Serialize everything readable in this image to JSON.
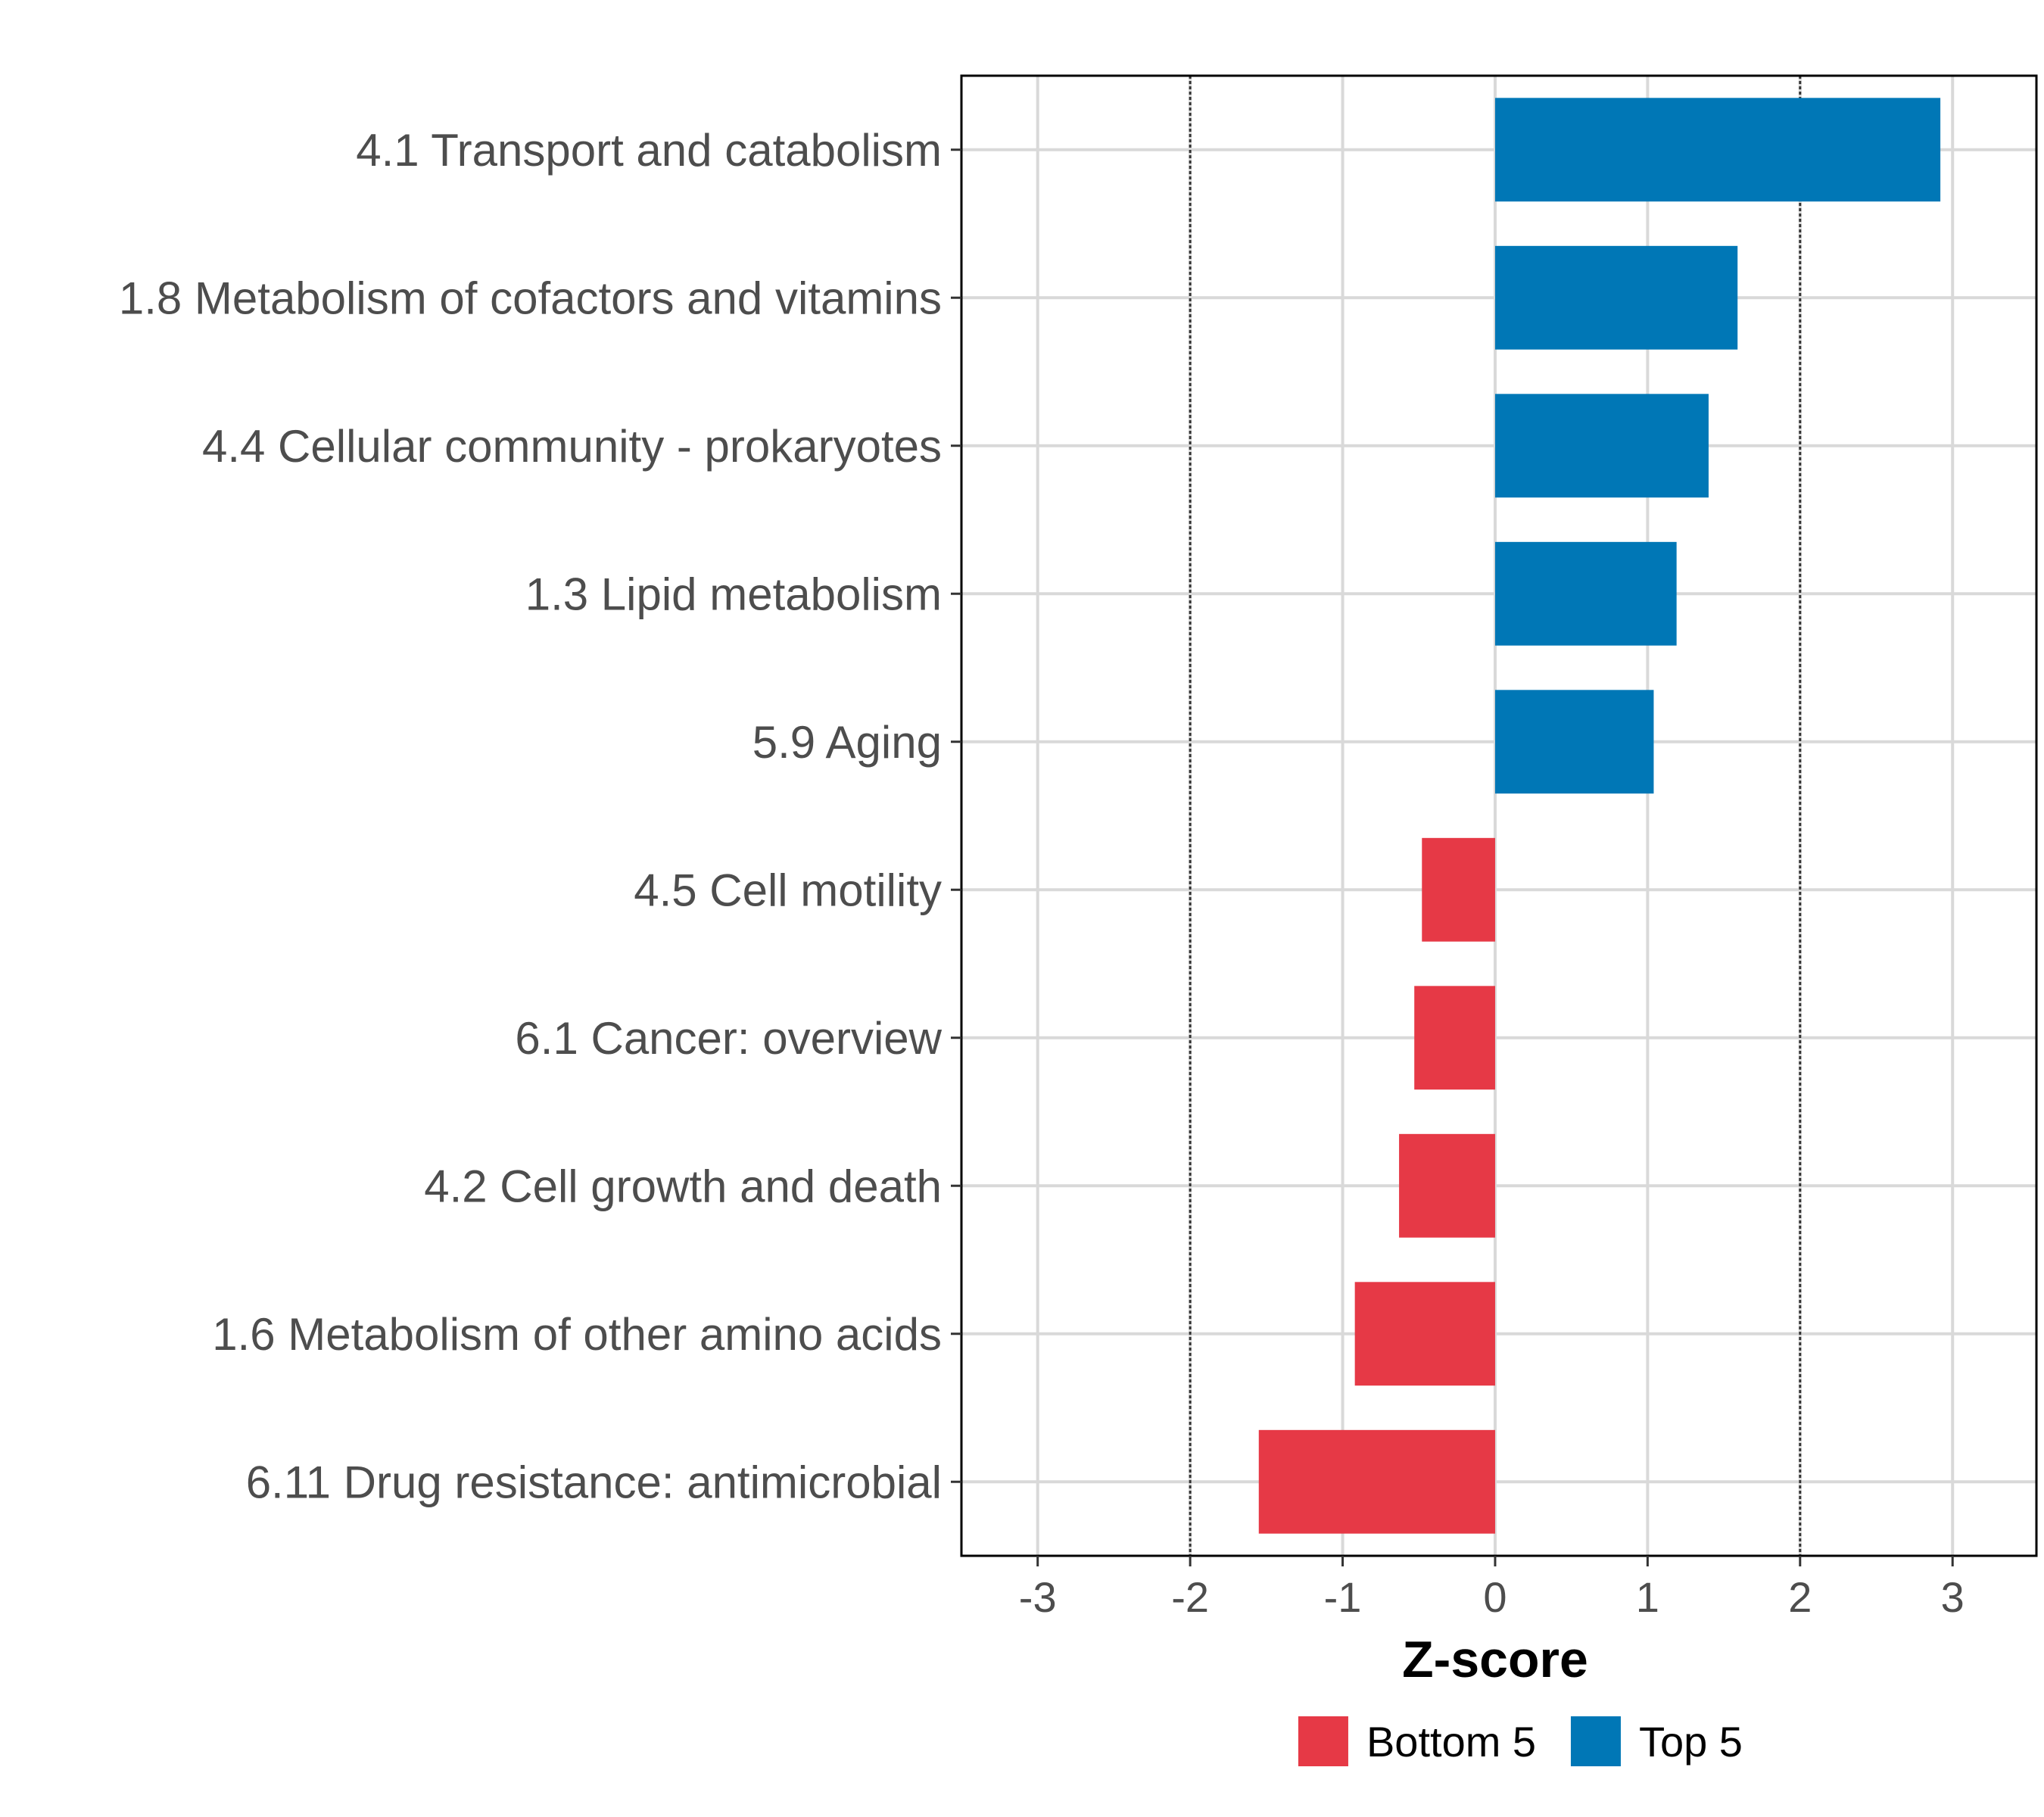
{
  "chart_data": {
    "type": "bar",
    "orientation": "horizontal",
    "title": "",
    "xlabel": "Z-score",
    "ylabel": "",
    "xlim": [
      -3.5,
      3.55
    ],
    "xticks": [
      -3,
      -2,
      -1,
      0,
      1,
      2,
      3
    ],
    "xtick_labels": [
      "-3",
      "-2",
      "-1",
      "0",
      "1",
      "2",
      "3"
    ],
    "reference_lines": [
      -2,
      2
    ],
    "grid": true,
    "categories": [
      "4.1 Transport and catabolism",
      "1.8 Metabolism of cofactors and vitamins",
      "4.4 Cellular community - prokaryotes",
      "1.3 Lipid metabolism",
      "5.9 Aging",
      "4.5 Cell motility",
      "6.1 Cancer: overview",
      "4.2 Cell growth and death",
      "1.6 Metabolism of other amino acids",
      "6.11 Drug resistance: antimicrobial"
    ],
    "values": [
      2.92,
      1.59,
      1.4,
      1.19,
      1.04,
      -0.48,
      -0.53,
      -0.63,
      -0.92,
      -1.55
    ],
    "groups": [
      "Top 5",
      "Top 5",
      "Top 5",
      "Top 5",
      "Top 5",
      "Bottom 5",
      "Bottom 5",
      "Bottom 5",
      "Bottom 5",
      "Bottom 5"
    ],
    "legend": {
      "position": "bottom",
      "entries": [
        {
          "label": "Bottom 5",
          "color": "#e63946"
        },
        {
          "label": "Top 5",
          "color": "#0077b6"
        }
      ]
    }
  }
}
